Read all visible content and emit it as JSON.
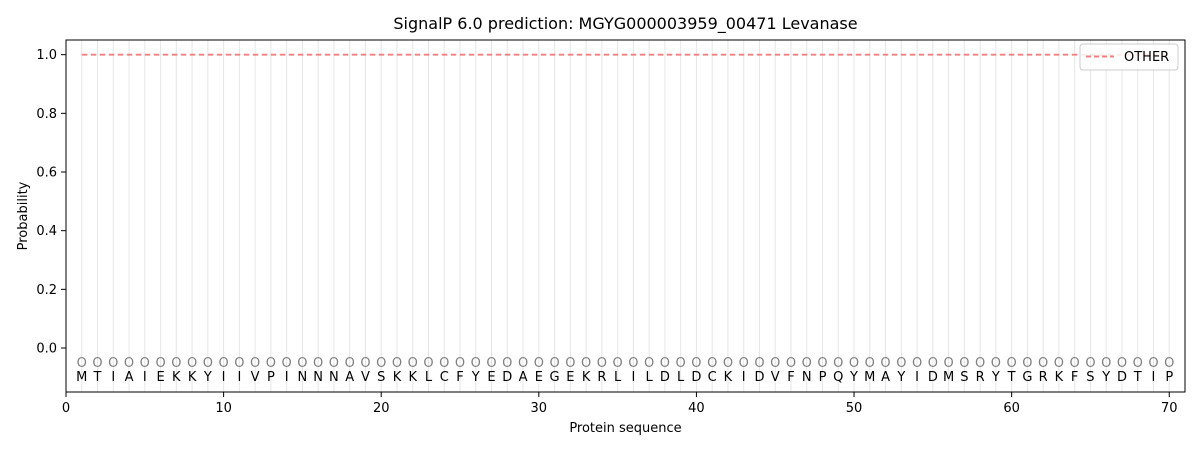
{
  "chart_data": {
    "type": "line",
    "title": "SignalP 6.0 prediction: MGYG000003959_00471 Levanase",
    "xlabel": "Protein sequence",
    "ylabel": "Probability",
    "xlim": [
      0,
      71
    ],
    "ylim": [
      -0.15,
      1.05
    ],
    "x_ticks": [
      0,
      10,
      20,
      30,
      40,
      50,
      60,
      70
    ],
    "y_ticks": [
      0.0,
      0.2,
      0.4,
      0.6,
      0.8,
      1.0
    ],
    "x_tick_labels": [
      "0",
      "10",
      "20",
      "30",
      "40",
      "50",
      "60",
      "70"
    ],
    "y_tick_labels": [
      "0.0",
      "0.2",
      "0.4",
      "0.6",
      "0.8",
      "1.0"
    ],
    "grid": "vertical lines at each residue",
    "legend_position": "top-right",
    "sequence": "MTIAIEKKYIIVPINNNAVSKKLCFYEDAEGEKRLILDLDCKIDVFNPQYMAYIDMSRYTGRKFSYDTIP",
    "per_residue_annotation": "O",
    "series": [
      {
        "name": "OTHER",
        "color": "#f08080",
        "style": "dashed",
        "x_start": 1,
        "x_end": 70,
        "value": 1.0
      }
    ]
  }
}
